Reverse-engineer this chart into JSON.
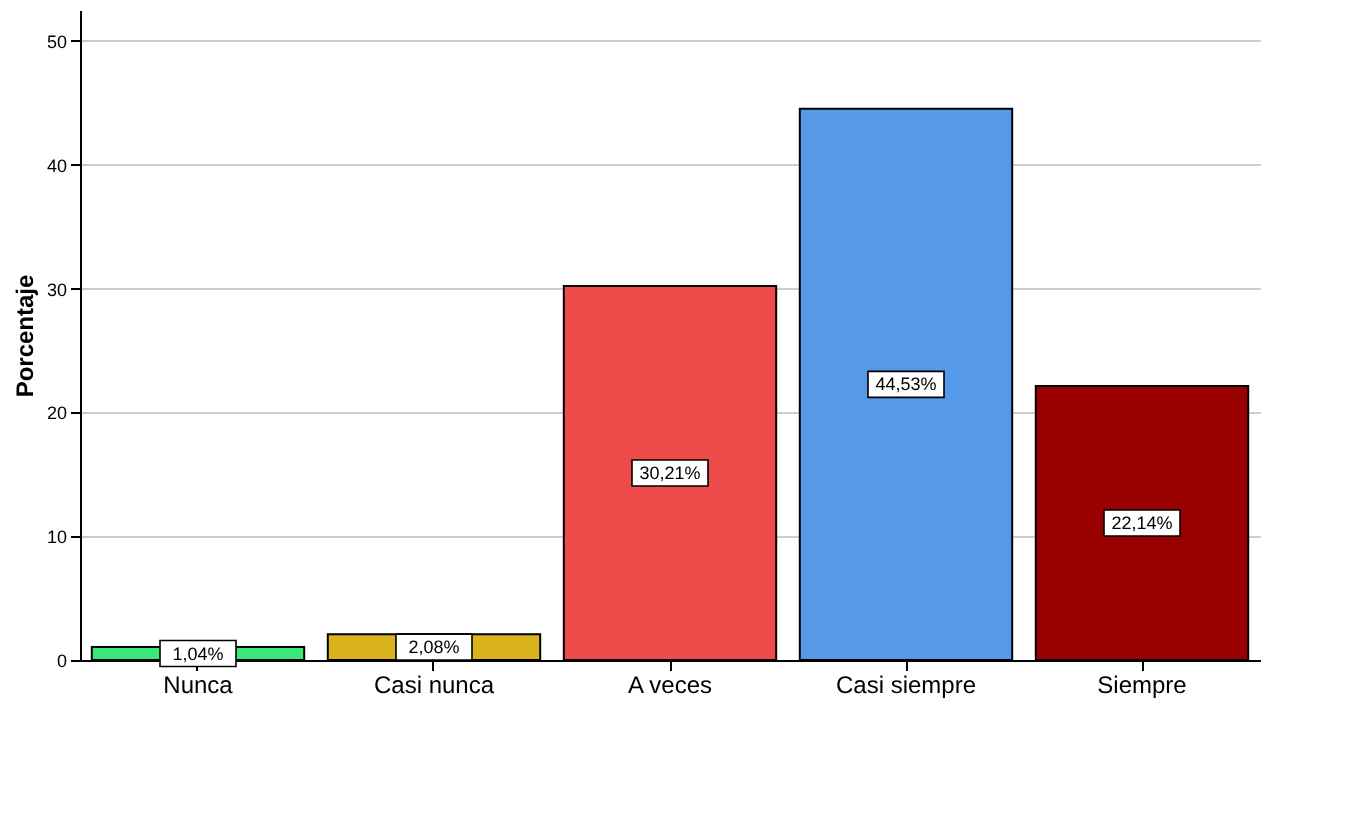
{
  "chart_data": {
    "type": "bar",
    "ylabel": "Porcentaje",
    "categories": [
      "Nunca",
      "Casi nunca",
      "A veces",
      "Casi siempre",
      "Siempre"
    ],
    "values": [
      1.04,
      2.08,
      30.21,
      44.53,
      22.14
    ],
    "colors": [
      "#3de87a",
      "#d9b41c",
      "#ef4b4b",
      "#5599e8",
      "#990000"
    ],
    "value_labels": [
      "1,04%",
      "2,08%",
      "30,21%",
      "44,53%",
      "22,14%"
    ],
    "ylim": [
      0,
      52.5
    ],
    "yticks": [
      0,
      10,
      20,
      30,
      40,
      50
    ],
    "grid": "y"
  }
}
